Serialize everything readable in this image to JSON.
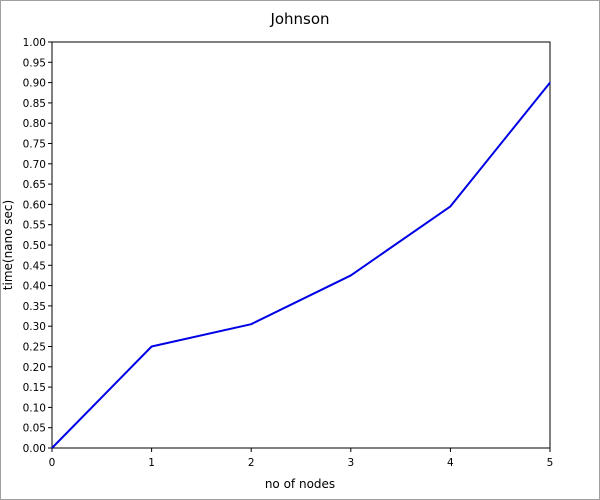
{
  "chart_data": {
    "type": "line",
    "title": "Johnson",
    "xlabel": "no of nodes",
    "ylabel": "time(nano sec)",
    "x": [
      0,
      1,
      2,
      3,
      4,
      5
    ],
    "series": [
      {
        "values": [
          0.0,
          0.25,
          0.305,
          0.425,
          0.595,
          0.9
        ],
        "color": "#0000e6"
      }
    ],
    "xlim": [
      0,
      5
    ],
    "ylim": [
      0,
      1
    ],
    "x_ticks": [
      "0",
      "1",
      "2",
      "3",
      "4",
      "5"
    ],
    "y_ticks": [
      "0.00",
      "0.05",
      "0.10",
      "0.15",
      "0.20",
      "0.25",
      "0.30",
      "0.35",
      "0.40",
      "0.45",
      "0.50",
      "0.55",
      "0.60",
      "0.65",
      "0.70",
      "0.75",
      "0.80",
      "0.85",
      "0.90",
      "0.95",
      "1.00"
    ],
    "grid": false,
    "legend": "none"
  }
}
